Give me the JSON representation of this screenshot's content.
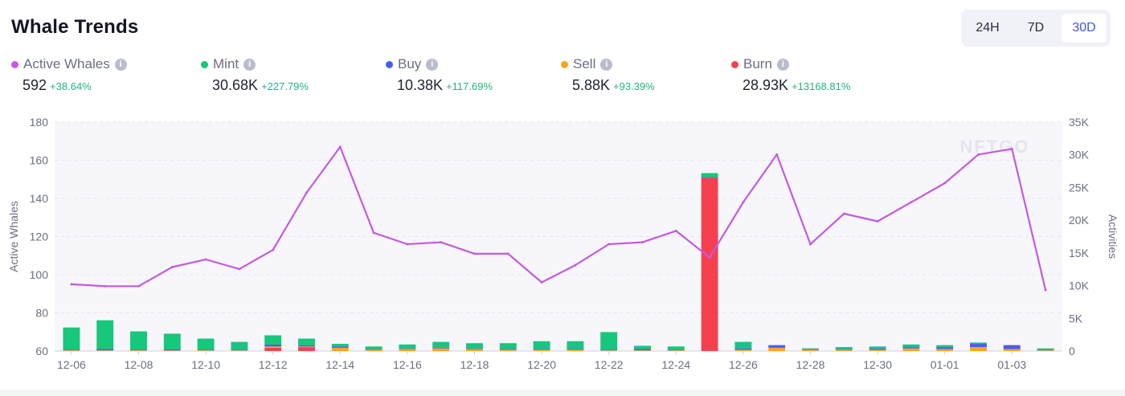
{
  "header": {
    "title": "Whale Trends"
  },
  "range": {
    "options": [
      "24H",
      "7D",
      "30D"
    ],
    "selected": "30D"
  },
  "legend": [
    {
      "label": "Active Whales",
      "value": "592",
      "change": "+38.64%",
      "color": "#c55ae0",
      "icon": "info-icon"
    },
    {
      "label": "Mint",
      "value": "30.68K",
      "change": "+227.79%",
      "color": "#17c77b",
      "icon": "info-icon"
    },
    {
      "label": "Buy",
      "value": "10.38K",
      "change": "+117.69%",
      "color": "#4a5cf0",
      "icon": "info-icon"
    },
    {
      "label": "Sell",
      "value": "5.88K",
      "change": "+93.39%",
      "color": "#f5a623",
      "icon": "info-icon"
    },
    {
      "label": "Burn",
      "value": "28.93K",
      "change": "+13168.81%",
      "color": "#f5414f",
      "icon": "info-icon"
    }
  ],
  "watermark": "NFTGO",
  "chart_data": {
    "type": "bar",
    "categories": [
      "12-06",
      "12-07",
      "12-08",
      "12-09",
      "12-10",
      "12-11",
      "12-12",
      "12-13",
      "12-14",
      "12-15",
      "12-16",
      "12-17",
      "12-18",
      "12-19",
      "12-20",
      "12-21",
      "12-22",
      "12-23",
      "12-24",
      "12-25",
      "12-26",
      "12-27",
      "12-28",
      "12-29",
      "12-30",
      "12-31",
      "01-01",
      "01-02",
      "01-03",
      "01-04"
    ],
    "x_tick_labels": [
      "12-06",
      "12-08",
      "12-10",
      "12-12",
      "12-14",
      "12-16",
      "12-18",
      "12-20",
      "12-22",
      "12-24",
      "12-26",
      "12-28",
      "12-30",
      "01-01",
      "01-03"
    ],
    "ylabel": "Active Whales",
    "y2label": "Activities",
    "ylim": [
      60,
      180
    ],
    "yticks": [
      60,
      80,
      100,
      120,
      140,
      160,
      180
    ],
    "y2lim": [
      0,
      35000
    ],
    "y2ticks": [
      "0",
      "5K",
      "10K",
      "15K",
      "20K",
      "25K",
      "30K",
      "35K"
    ],
    "grid": true,
    "series": [
      {
        "name": "Active Whales",
        "kind": "line",
        "axis": "left",
        "color": "#c55ae0",
        "values": [
          95,
          94,
          94,
          104,
          108,
          103,
          113,
          143,
          167,
          122,
          116,
          117,
          111,
          111,
          96,
          105,
          116,
          117,
          123,
          109,
          138,
          163,
          116,
          132,
          128,
          138,
          148,
          163,
          166,
          92
        ]
      },
      {
        "name": "Burn",
        "kind": "bar",
        "axis": "right",
        "color": "#f5414f",
        "values": [
          0,
          0,
          0,
          0,
          0,
          0,
          500,
          600,
          0,
          0,
          0,
          0,
          0,
          0,
          0,
          0,
          0,
          0,
          0,
          26500,
          0,
          0,
          0,
          0,
          0,
          0,
          0,
          0,
          0,
          0
        ]
      },
      {
        "name": "Sell",
        "kind": "bar",
        "axis": "right",
        "color": "#f5a623",
        "values": [
          100,
          100,
          100,
          100,
          100,
          100,
          200,
          100,
          500,
          200,
          300,
          400,
          300,
          200,
          200,
          200,
          100,
          100,
          100,
          0,
          200,
          500,
          200,
          200,
          200,
          400,
          300,
          600,
          300,
          100
        ]
      },
      {
        "name": "Buy",
        "kind": "bar",
        "axis": "right",
        "color": "#4a5cf0",
        "values": [
          100,
          200,
          100,
          150,
          100,
          100,
          300,
          200,
          200,
          100,
          100,
          100,
          100,
          100,
          100,
          100,
          100,
          200,
          100,
          100,
          200,
          400,
          100,
          100,
          200,
          200,
          300,
          500,
          600,
          100
        ]
      },
      {
        "name": "Mint",
        "kind": "bar",
        "axis": "right",
        "color": "#17c77b",
        "values": [
          3400,
          4400,
          2800,
          2400,
          1700,
          1200,
          1400,
          1000,
          400,
          400,
          600,
          900,
          800,
          900,
          1200,
          1200,
          2700,
          500,
          500,
          600,
          1000,
          0,
          100,
          300,
          300,
          400,
          300,
          200,
          0,
          200
        ]
      }
    ]
  }
}
